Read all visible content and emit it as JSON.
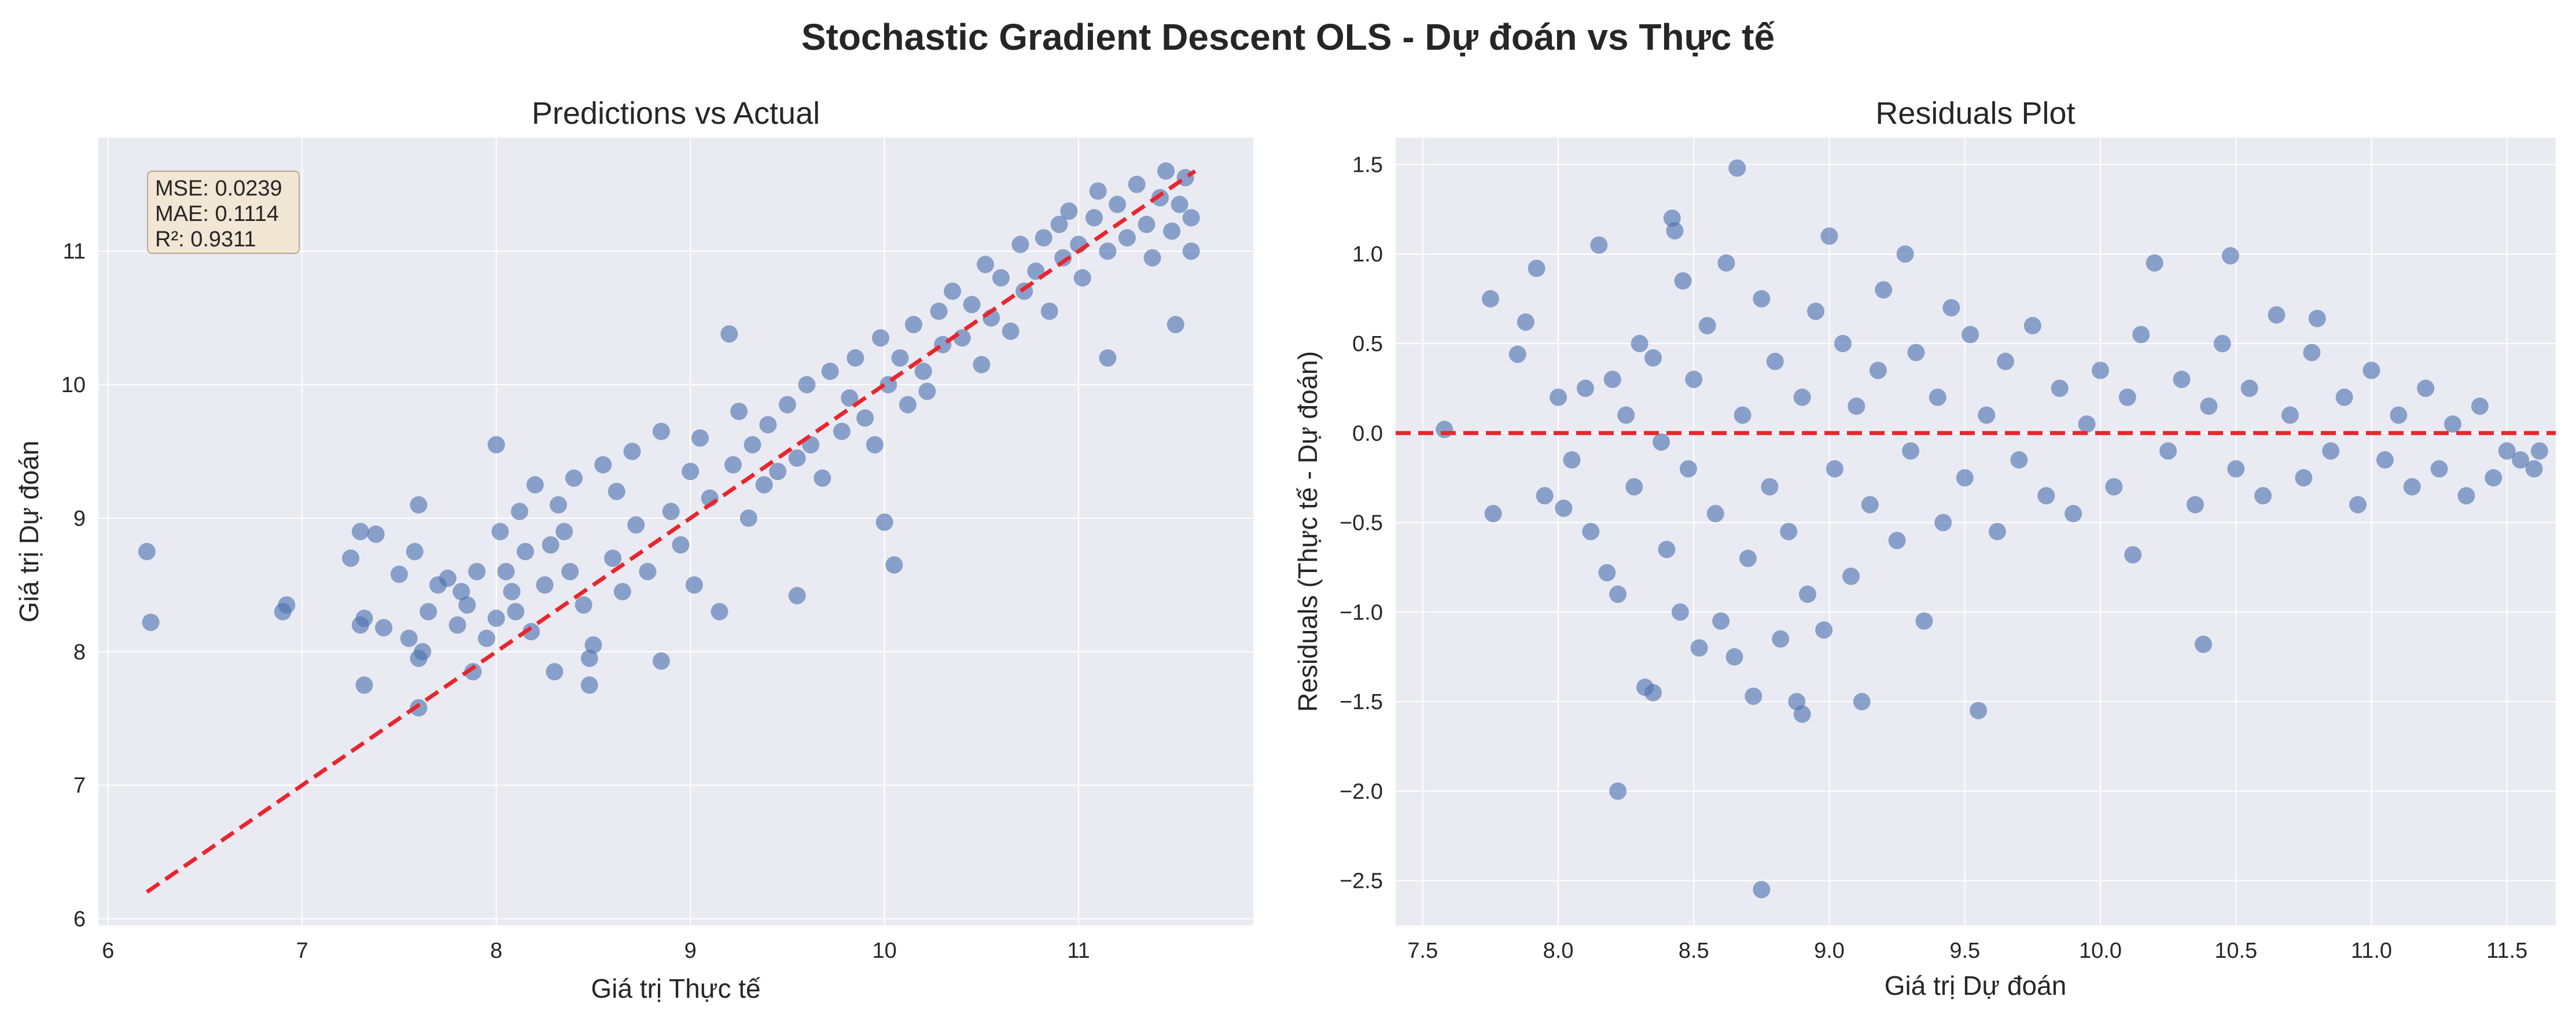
{
  "figure": {
    "suptitle": "Stochastic Gradient Descent OLS - Dự đoán vs Thực tế",
    "colors": {
      "axes_bg": "#eaeaf2",
      "grid": "#ffffff",
      "points": "#4c72b0",
      "reference_line": "#e8262e",
      "stats_box_fill": "#f3e5cf",
      "stats_box_edge": "#b9a98d"
    }
  },
  "chart_data": [
    {
      "type": "scatter",
      "title": "Predictions vs Actual",
      "xlabel": "Giá trị Thực tế",
      "ylabel": "Giá trị Dự đoán",
      "xlim": [
        5.95,
        11.9
      ],
      "ylim": [
        5.95,
        11.85
      ],
      "xticks": [
        6,
        7,
        8,
        9,
        10,
        11
      ],
      "yticks": [
        6,
        7,
        8,
        9,
        10,
        11
      ],
      "grid": true,
      "reference_line": {
        "style": "dashed",
        "x": [
          6.2,
          11.6
        ],
        "y": [
          6.2,
          11.6
        ]
      },
      "stats_box": {
        "placement": "top-left",
        "lines": [
          "MSE: 0.0239",
          "MAE: 0.1114",
          "R²: 0.9311"
        ]
      },
      "points": [
        [
          6.2,
          8.75
        ],
        [
          6.22,
          8.22
        ],
        [
          6.9,
          8.3
        ],
        [
          6.92,
          8.35
        ],
        [
          7.25,
          8.7
        ],
        [
          7.3,
          8.9
        ],
        [
          7.32,
          7.75
        ],
        [
          7.3,
          8.2
        ],
        [
          7.32,
          8.25
        ],
        [
          7.38,
          8.88
        ],
        [
          7.42,
          8.18
        ],
        [
          7.5,
          8.58
        ],
        [
          7.55,
          8.1
        ],
        [
          7.6,
          9.1
        ],
        [
          7.6,
          7.58
        ],
        [
          7.6,
          7.95
        ],
        [
          7.58,
          8.75
        ],
        [
          7.62,
          8.0
        ],
        [
          7.65,
          8.3
        ],
        [
          7.7,
          8.5
        ],
        [
          7.75,
          8.55
        ],
        [
          7.8,
          8.2
        ],
        [
          7.82,
          8.45
        ],
        [
          7.85,
          8.35
        ],
        [
          7.88,
          7.85
        ],
        [
          7.9,
          8.6
        ],
        [
          7.95,
          8.1
        ],
        [
          8.0,
          9.55
        ],
        [
          8.0,
          8.25
        ],
        [
          8.02,
          8.9
        ],
        [
          8.05,
          8.6
        ],
        [
          8.08,
          8.45
        ],
        [
          8.1,
          8.3
        ],
        [
          8.12,
          9.05
        ],
        [
          8.15,
          8.75
        ],
        [
          8.18,
          8.15
        ],
        [
          8.2,
          9.25
        ],
        [
          8.25,
          8.5
        ],
        [
          8.28,
          8.8
        ],
        [
          8.3,
          7.85
        ],
        [
          8.32,
          9.1
        ],
        [
          8.35,
          8.9
        ],
        [
          8.38,
          8.6
        ],
        [
          8.4,
          9.3
        ],
        [
          8.45,
          8.35
        ],
        [
          8.48,
          7.75
        ],
        [
          8.48,
          7.95
        ],
        [
          8.5,
          8.05
        ],
        [
          8.55,
          9.4
        ],
        [
          8.6,
          8.7
        ],
        [
          8.62,
          9.2
        ],
        [
          8.65,
          8.45
        ],
        [
          8.7,
          9.5
        ],
        [
          8.72,
          8.95
        ],
        [
          8.78,
          8.6
        ],
        [
          8.85,
          7.93
        ],
        [
          8.85,
          9.65
        ],
        [
          8.9,
          9.05
        ],
        [
          8.95,
          8.8
        ],
        [
          9.0,
          9.35
        ],
        [
          9.02,
          8.5
        ],
        [
          9.05,
          9.6
        ],
        [
          9.1,
          9.15
        ],
        [
          9.15,
          8.3
        ],
        [
          9.2,
          10.38
        ],
        [
          9.22,
          9.4
        ],
        [
          9.25,
          9.8
        ],
        [
          9.3,
          9.0
        ],
        [
          9.32,
          9.55
        ],
        [
          9.38,
          9.25
        ],
        [
          9.4,
          9.7
        ],
        [
          9.45,
          9.35
        ],
        [
          9.5,
          9.85
        ],
        [
          9.55,
          9.45
        ],
        [
          9.55,
          8.42
        ],
        [
          9.6,
          10.0
        ],
        [
          9.62,
          9.55
        ],
        [
          9.68,
          9.3
        ],
        [
          9.72,
          10.1
        ],
        [
          9.78,
          9.65
        ],
        [
          9.82,
          9.9
        ],
        [
          9.85,
          10.2
        ],
        [
          9.9,
          9.75
        ],
        [
          9.95,
          9.55
        ],
        [
          9.98,
          10.35
        ],
        [
          10.0,
          8.97
        ],
        [
          10.02,
          10.0
        ],
        [
          10.05,
          8.65
        ],
        [
          10.08,
          10.2
        ],
        [
          10.12,
          9.85
        ],
        [
          10.15,
          10.45
        ],
        [
          10.2,
          10.1
        ],
        [
          10.22,
          9.95
        ],
        [
          10.28,
          10.55
        ],
        [
          10.3,
          10.3
        ],
        [
          10.35,
          10.7
        ],
        [
          10.4,
          10.35
        ],
        [
          10.45,
          10.6
        ],
        [
          10.5,
          10.15
        ],
        [
          10.52,
          10.9
        ],
        [
          10.55,
          10.5
        ],
        [
          10.6,
          10.8
        ],
        [
          10.65,
          10.4
        ],
        [
          10.7,
          11.05
        ],
        [
          10.72,
          10.7
        ],
        [
          10.78,
          10.85
        ],
        [
          10.82,
          11.1
        ],
        [
          10.85,
          10.55
        ],
        [
          10.9,
          11.2
        ],
        [
          10.92,
          10.95
        ],
        [
          10.95,
          11.3
        ],
        [
          11.0,
          11.05
        ],
        [
          11.02,
          10.8
        ],
        [
          11.08,
          11.25
        ],
        [
          11.1,
          11.45
        ],
        [
          11.15,
          11.0
        ],
        [
          11.15,
          10.2
        ],
        [
          11.2,
          11.35
        ],
        [
          11.25,
          11.1
        ],
        [
          11.3,
          11.5
        ],
        [
          11.35,
          11.2
        ],
        [
          11.38,
          10.95
        ],
        [
          11.42,
          11.4
        ],
        [
          11.45,
          11.6
        ],
        [
          11.48,
          11.15
        ],
        [
          11.5,
          10.45
        ],
        [
          11.52,
          11.35
        ],
        [
          11.55,
          11.55
        ],
        [
          11.58,
          11.0
        ],
        [
          11.58,
          11.25
        ]
      ]
    },
    {
      "type": "scatter",
      "title": "Residuals Plot",
      "xlabel": "Giá trị Dự đoán",
      "ylabel": "Residuals (Thực tế - Dự đoán)",
      "xlim": [
        7.4,
        11.68
      ],
      "ylim": [
        -2.75,
        1.65
      ],
      "xticks": [
        7.5,
        8.0,
        8.5,
        9.0,
        9.5,
        10.0,
        10.5,
        11.0,
        11.5
      ],
      "yticks": [
        1.5,
        1.0,
        0.5,
        0.0,
        -0.5,
        -1.0,
        -1.5,
        -2.0,
        -2.5
      ],
      "grid": true,
      "reference_line": {
        "style": "dashed",
        "y": 0.0
      },
      "points": [
        [
          7.58,
          0.02
        ],
        [
          7.75,
          0.75
        ],
        [
          7.76,
          -0.45
        ],
        [
          7.85,
          0.44
        ],
        [
          7.88,
          0.62
        ],
        [
          7.92,
          0.92
        ],
        [
          7.95,
          -0.35
        ],
        [
          8.0,
          0.2
        ],
        [
          8.02,
          -0.42
        ],
        [
          8.05,
          -0.15
        ],
        [
          8.1,
          0.25
        ],
        [
          8.12,
          -0.55
        ],
        [
          8.15,
          1.05
        ],
        [
          8.18,
          -0.78
        ],
        [
          8.2,
          0.3
        ],
        [
          8.22,
          -2.0
        ],
        [
          8.22,
          -0.9
        ],
        [
          8.25,
          0.1
        ],
        [
          8.28,
          -0.3
        ],
        [
          8.3,
          0.5
        ],
        [
          8.32,
          -1.42
        ],
        [
          8.35,
          -1.45
        ],
        [
          8.35,
          0.42
        ],
        [
          8.38,
          -0.05
        ],
        [
          8.4,
          -0.65
        ],
        [
          8.42,
          1.2
        ],
        [
          8.43,
          1.13
        ],
        [
          8.45,
          -1.0
        ],
        [
          8.46,
          0.85
        ],
        [
          8.48,
          -0.2
        ],
        [
          8.5,
          0.3
        ],
        [
          8.52,
          -1.2
        ],
        [
          8.55,
          0.6
        ],
        [
          8.58,
          -0.45
        ],
        [
          8.6,
          -1.05
        ],
        [
          8.62,
          0.95
        ],
        [
          8.65,
          -1.25
        ],
        [
          8.66,
          1.48
        ],
        [
          8.68,
          0.1
        ],
        [
          8.7,
          -0.7
        ],
        [
          8.72,
          -1.47
        ],
        [
          8.75,
          -2.55
        ],
        [
          8.75,
          0.75
        ],
        [
          8.78,
          -0.3
        ],
        [
          8.8,
          0.4
        ],
        [
          8.82,
          -1.15
        ],
        [
          8.85,
          -0.55
        ],
        [
          8.88,
          -1.5
        ],
        [
          8.9,
          -1.57
        ],
        [
          8.9,
          0.2
        ],
        [
          8.92,
          -0.9
        ],
        [
          8.95,
          0.68
        ],
        [
          8.98,
          -1.1
        ],
        [
          9.0,
          1.1
        ],
        [
          9.02,
          -0.2
        ],
        [
          9.05,
          0.5
        ],
        [
          9.08,
          -0.8
        ],
        [
          9.1,
          0.15
        ],
        [
          9.12,
          -1.5
        ],
        [
          9.15,
          -0.4
        ],
        [
          9.18,
          0.35
        ],
        [
          9.2,
          0.8
        ],
        [
          9.25,
          -0.6
        ],
        [
          9.28,
          1.0
        ],
        [
          9.3,
          -0.1
        ],
        [
          9.32,
          0.45
        ],
        [
          9.35,
          -1.05
        ],
        [
          9.4,
          0.2
        ],
        [
          9.42,
          -0.5
        ],
        [
          9.45,
          0.7
        ],
        [
          9.5,
          -0.25
        ],
        [
          9.52,
          0.55
        ],
        [
          9.55,
          -1.55
        ],
        [
          9.58,
          0.1
        ],
        [
          9.62,
          -0.55
        ],
        [
          9.65,
          0.4
        ],
        [
          9.7,
          -0.15
        ],
        [
          9.75,
          0.6
        ],
        [
          9.8,
          -0.35
        ],
        [
          9.85,
          0.25
        ],
        [
          9.9,
          -0.45
        ],
        [
          9.95,
          0.05
        ],
        [
          10.0,
          0.35
        ],
        [
          10.05,
          -0.3
        ],
        [
          10.1,
          0.2
        ],
        [
          10.12,
          -0.68
        ],
        [
          10.15,
          0.55
        ],
        [
          10.2,
          0.95
        ],
        [
          10.25,
          -0.1
        ],
        [
          10.3,
          0.3
        ],
        [
          10.35,
          -0.4
        ],
        [
          10.38,
          -1.18
        ],
        [
          10.4,
          0.15
        ],
        [
          10.45,
          0.5
        ],
        [
          10.48,
          0.99
        ],
        [
          10.5,
          -0.2
        ],
        [
          10.55,
          0.25
        ],
        [
          10.6,
          -0.35
        ],
        [
          10.65,
          0.66
        ],
        [
          10.7,
          0.1
        ],
        [
          10.75,
          -0.25
        ],
        [
          10.78,
          0.45
        ],
        [
          10.8,
          0.64
        ],
        [
          10.85,
          -0.1
        ],
        [
          10.9,
          0.2
        ],
        [
          10.95,
          -0.4
        ],
        [
          11.0,
          0.35
        ],
        [
          11.05,
          -0.15
        ],
        [
          11.1,
          0.1
        ],
        [
          11.15,
          -0.3
        ],
        [
          11.2,
          0.25
        ],
        [
          11.25,
          -0.2
        ],
        [
          11.3,
          0.05
        ],
        [
          11.35,
          -0.35
        ],
        [
          11.4,
          0.15
        ],
        [
          11.45,
          -0.25
        ],
        [
          11.5,
          -0.1
        ],
        [
          11.55,
          -0.15
        ],
        [
          11.6,
          -0.2
        ],
        [
          11.62,
          -0.1
        ]
      ]
    }
  ]
}
